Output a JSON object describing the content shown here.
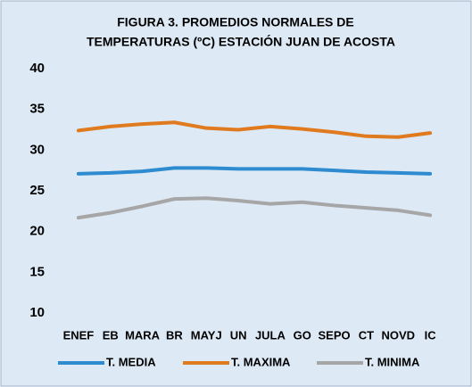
{
  "chart_data": {
    "type": "line",
    "title": [
      "FIGURA 3. PROMEDIOS NORMALES DE",
      "TEMPERATURAS (ºC) ESTACIÓN JUAN DE ACOSTA"
    ],
    "categories": [
      "ENEF",
      "EB",
      "MARA",
      "BR",
      "MAYJ",
      "UN",
      "JULA",
      "GO",
      "SEPO",
      "CT",
      "NOVD",
      "IC"
    ],
    "series": [
      {
        "name": "T. MEDIA",
        "color": "#2e8bd0",
        "values": [
          27.1,
          27.2,
          27.4,
          27.8,
          27.8,
          27.7,
          27.7,
          27.7,
          27.5,
          27.3,
          27.2,
          27.1
        ]
      },
      {
        "name": "T. MAXIMA",
        "color": "#e07a1f",
        "values": [
          32.4,
          32.9,
          33.2,
          33.4,
          32.7,
          32.5,
          32.9,
          32.6,
          32.2,
          31.7,
          31.6,
          32.1
        ]
      },
      {
        "name": "T. MINIMA",
        "color": "#a6a6a6",
        "values": [
          21.7,
          22.3,
          23.1,
          24.0,
          24.1,
          23.8,
          23.4,
          23.6,
          23.2,
          22.9,
          22.6,
          22.0
        ]
      }
    ],
    "ylim": [
      10,
      40
    ],
    "yticks": [
      10,
      15,
      20,
      25,
      30,
      35,
      40
    ],
    "grid": false,
    "legend": "bottom"
  }
}
